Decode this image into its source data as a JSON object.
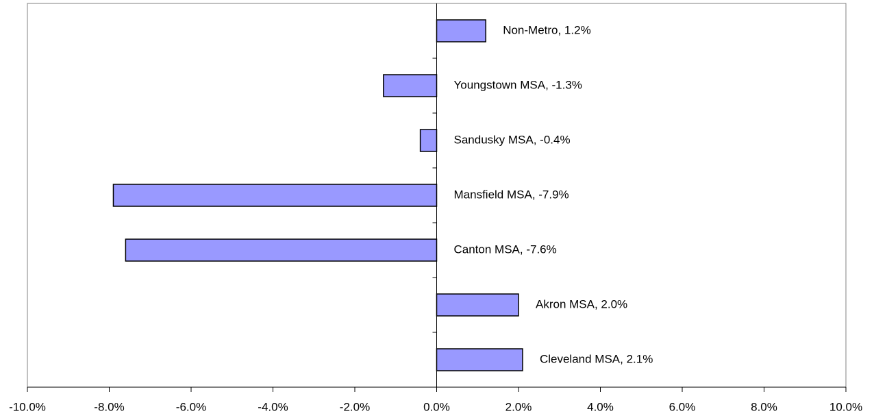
{
  "chart_data": {
    "type": "bar",
    "orientation": "horizontal",
    "values": [
      1.2,
      -1.3,
      -0.4,
      -7.9,
      -7.6,
      2.0,
      2.1
    ],
    "value_labels": [
      "Non-Metro, 1.2%",
      "Youngstown MSA, -1.3%",
      "Sandusky MSA, -0.4%",
      "Mansfield MSA, -7.9%",
      "Canton MSA, -7.6%",
      "Akron MSA, 2.0%",
      "Cleveland MSA, 2.1%"
    ],
    "color": "#9999ff",
    "xlim": [
      -10,
      10
    ],
    "xticks": [
      {
        "value": -10,
        "label": "-10.0%"
      },
      {
        "value": -8,
        "label": "-8.0%"
      },
      {
        "value": -6,
        "label": "-6.0%"
      },
      {
        "value": -4,
        "label": "-4.0%"
      },
      {
        "value": -2,
        "label": "-2.0%"
      },
      {
        "value": 0,
        "label": "0.0%"
      },
      {
        "value": 2,
        "label": "2.0%"
      },
      {
        "value": 4,
        "label": "4.0%"
      },
      {
        "value": 6,
        "label": "6.0%"
      },
      {
        "value": 8,
        "label": "8.0%"
      },
      {
        "value": 10,
        "label": "10.0%"
      }
    ]
  }
}
